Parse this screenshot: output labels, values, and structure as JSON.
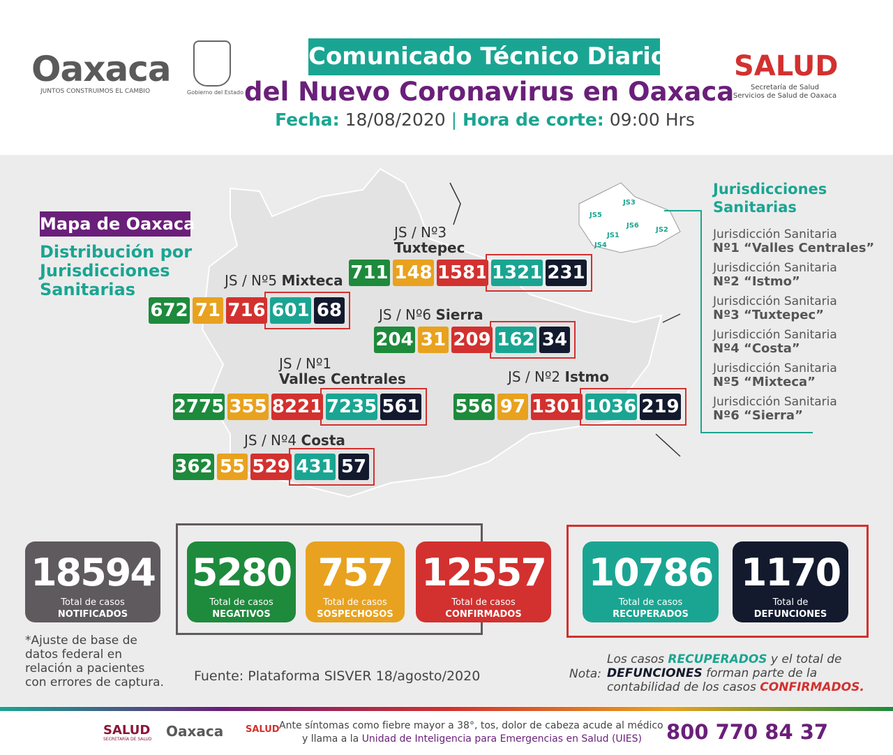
{
  "header": {
    "logo_text": "Oaxaca",
    "logo_tagline": "JUNTOS CONSTRUIMOS EL CAMBIO",
    "gobierno": "Gobierno del Estado",
    "title_line1": "Comunicado Técnico Diario",
    "title_line2": "del Nuevo Coronavirus en Oaxaca",
    "fecha_label": "Fecha:",
    "fecha": "18/08/2020",
    "hora_label": "Hora de corte:",
    "hora": "09:00 Hrs",
    "salud": "SALUD",
    "salud_sub1": "Secretaría de Salud",
    "salud_sub2": "Servicios de Salud de Oaxaca"
  },
  "map": {
    "label": "Mapa de Oaxaca",
    "subtitle": [
      "Distribución por",
      "Jurisdicciones",
      "Sanitarias"
    ],
    "jurisdictions": [
      {
        "code": "JS / Nº3",
        "name": "Tuxtepec",
        "values": [
          711,
          148,
          1581,
          1321,
          231
        ]
      },
      {
        "code": "JS / Nº5",
        "name": "Mixteca",
        "values": [
          672,
          71,
          716,
          601,
          68
        ]
      },
      {
        "code": "JS / Nº6",
        "name": "Sierra",
        "values": [
          204,
          31,
          209,
          162,
          34
        ]
      },
      {
        "code": "JS / Nº1",
        "name": "Valles Centrales",
        "values": [
          2775,
          355,
          8221,
          7235,
          561
        ]
      },
      {
        "code": "JS / Nº2",
        "name": "Istmo",
        "values": [
          556,
          97,
          1301,
          1036,
          219
        ]
      },
      {
        "code": "JS / Nº4",
        "name": "Costa",
        "values": [
          362,
          55,
          529,
          431,
          57
        ]
      }
    ]
  },
  "legend": {
    "title": [
      "Jurisdicciones",
      "Sanitarias"
    ],
    "minimap": [
      "JS1",
      "JS2",
      "JS3",
      "JS4",
      "JS5",
      "JS6"
    ],
    "items": [
      [
        "Jurisdicción Sanitaria",
        "Nº1 “Valles Centrales”"
      ],
      [
        "Jurisdicción Sanitaria",
        "Nº2 “Istmo”"
      ],
      [
        "Jurisdicción Sanitaria",
        "Nº3 “Tuxtepec”"
      ],
      [
        "Jurisdicción Sanitaria",
        "Nº4 “Costa”"
      ],
      [
        "Jurisdicción Sanitaria",
        "Nº5 “Mixteca”"
      ],
      [
        "Jurisdicción Sanitaria",
        "Nº6 “Sierra”"
      ]
    ]
  },
  "totals": [
    {
      "value": 18594,
      "label1": "Total de casos",
      "label2": "NOTIFICADOS"
    },
    {
      "value": 5280,
      "label1": "Total de casos",
      "label2": "NEGATIVOS"
    },
    {
      "value": 757,
      "label1": "Total de casos",
      "label2": "SOSPECHOSOS"
    },
    {
      "value": 12557,
      "label1": "Total de casos",
      "label2": "CONFIRMADOS"
    },
    {
      "value": 10786,
      "label1": "Total de casos",
      "label2": "RECUPERADOS"
    },
    {
      "value": 1170,
      "label1": "Total de",
      "label2": "DEFUNCIONES"
    }
  ],
  "footnote": [
    "*Ajuste de base de",
    "datos federal en",
    "relación a pacientes",
    "con errores de captura."
  ],
  "source": "Fuente: Plataforma SISVER 18/agosto/2020",
  "note": {
    "label": "Nota:",
    "lines": [
      [
        "Los casos ",
        "RECUPERADOS",
        " y el total de"
      ],
      [
        "DEFUNCIONES",
        " forman parte de la"
      ],
      [
        "contabilidad de los casos ",
        "CONFIRMADOS."
      ]
    ]
  },
  "footer": {
    "salud": "SALUD",
    "salud_sub": "SECRETARÍA DE SALUD",
    "oaxaca": "Oaxaca",
    "salud2": "SALUD",
    "line1": "Ante síntomas como fiebre mayor a 38°, tos, dolor de cabeza acude al médico",
    "line2": [
      "y llama a la ",
      "Unidad de Inteligencia para Emergencias en Salud (UIES)"
    ],
    "phone": "800 770 84 37"
  }
}
